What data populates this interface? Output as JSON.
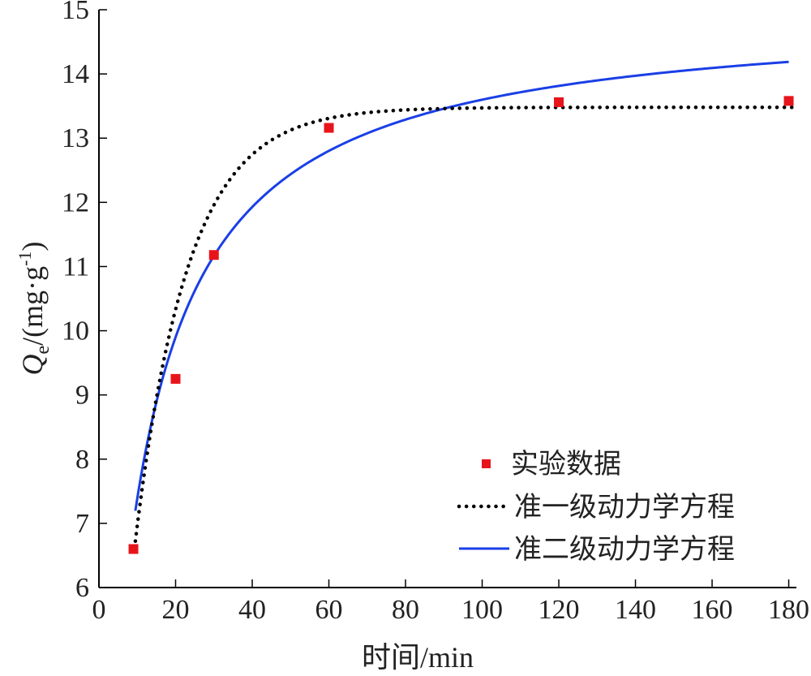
{
  "chart_data": {
    "type": "scatter",
    "xlabel": "时间/min",
    "ylabel": {
      "main": "Q",
      "sub": "e",
      "rest": "/(mg·g",
      "sup": "-1",
      "close": ")"
    },
    "xlim": [
      0,
      182
    ],
    "ylim": [
      6,
      15
    ],
    "xticks": [
      0,
      20,
      40,
      60,
      80,
      100,
      120,
      140,
      160,
      180
    ],
    "yticks": [
      6,
      7,
      8,
      9,
      10,
      11,
      12,
      13,
      14,
      15
    ],
    "grid": false,
    "legend_position": "bottom-right",
    "series": [
      {
        "name": "实验数据",
        "kind": "markers",
        "color": "#e8141b",
        "x": [
          9,
          20,
          30,
          60,
          120,
          180
        ],
        "y": [
          6.6,
          9.25,
          11.18,
          13.16,
          13.56,
          13.58
        ]
      },
      {
        "name": "准一级动力学方程",
        "kind": "dotted-line",
        "color": "#000000",
        "model": {
          "qe": 13.48,
          "k1": 0.0727,
          "t0": 0
        },
        "x_range": [
          9.5,
          182
        ]
      },
      {
        "name": "准二级动力学方程",
        "kind": "line",
        "color": "#1a3fe6",
        "model": {
          "qe": 15.0,
          "k2": 0.00647
        },
        "x_range": [
          9.5,
          180
        ]
      }
    ]
  }
}
